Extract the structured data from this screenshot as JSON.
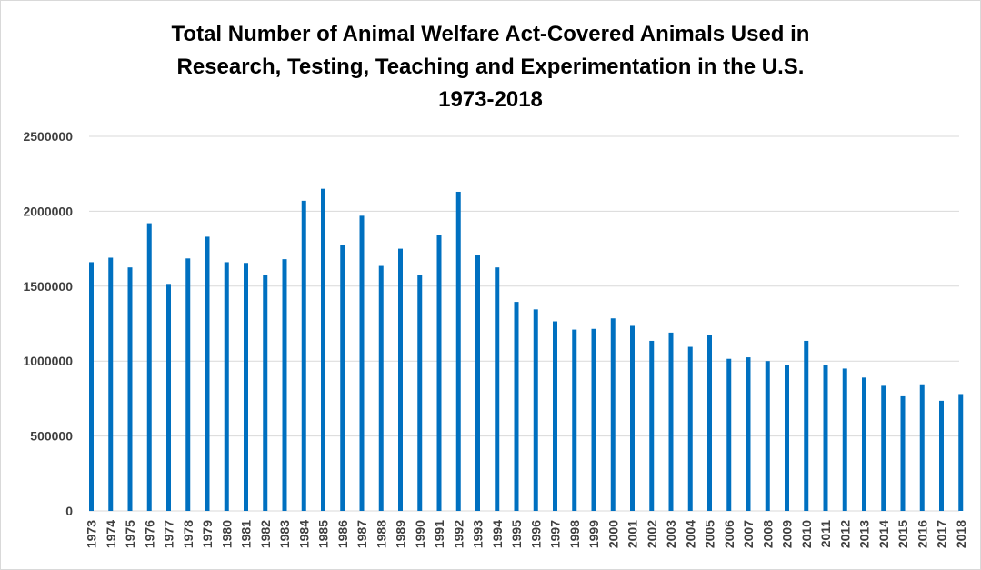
{
  "chart_data": {
    "type": "bar",
    "title_lines": [
      "Total Number of Animal Welfare Act-Covered Animals Used in",
      "Research, Testing, Teaching and Experimentation in the U.S.",
      "1973-2018"
    ],
    "xlabel": "",
    "ylabel": "",
    "ylim": [
      0,
      2500000
    ],
    "yticks": [
      "0",
      "500000",
      "1000000",
      "1500000",
      "2000000",
      "2500000"
    ],
    "grid": true,
    "bar_color": "#0070C0",
    "grid_color": "#d9d9d9",
    "categories": [
      "1973",
      "1974",
      "1975",
      "1976",
      "1977",
      "1978",
      "1979",
      "1980",
      "1981",
      "1982",
      "1983",
      "1984",
      "1985",
      "1986",
      "1987",
      "1988",
      "1989",
      "1990",
      "1991",
      "1992",
      "1993",
      "1994",
      "1995",
      "1996",
      "1997",
      "1998",
      "1999",
      "2000",
      "2001",
      "2002",
      "2003",
      "2004",
      "2005",
      "2006",
      "2007",
      "2008",
      "2009",
      "2010",
      "2011",
      "2012",
      "2013",
      "2014",
      "2015",
      "2016",
      "2017",
      "2018"
    ],
    "values": [
      1660000,
      1690000,
      1625000,
      1920000,
      1515000,
      1685000,
      1830000,
      1660000,
      1655000,
      1575000,
      1680000,
      2070000,
      2150000,
      1775000,
      1970000,
      1635000,
      1750000,
      1575000,
      1840000,
      2130000,
      1705000,
      1625000,
      1395000,
      1345000,
      1265000,
      1210000,
      1215000,
      1285000,
      1235000,
      1135000,
      1190000,
      1095000,
      1175000,
      1015000,
      1025000,
      1000000,
      975000,
      1135000,
      975000,
      950000,
      890000,
      835000,
      765000,
      845000,
      735000,
      780000
    ]
  }
}
